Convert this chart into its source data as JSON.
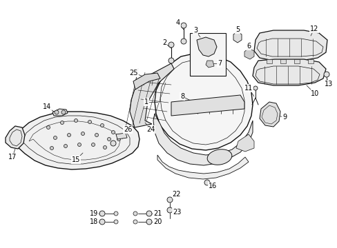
{
  "background_color": "#ffffff",
  "fig_width": 4.89,
  "fig_height": 3.6,
  "dpi": 100,
  "line_color": "#111111",
  "label_fontsize": 7.0,
  "label_color": "#000000"
}
